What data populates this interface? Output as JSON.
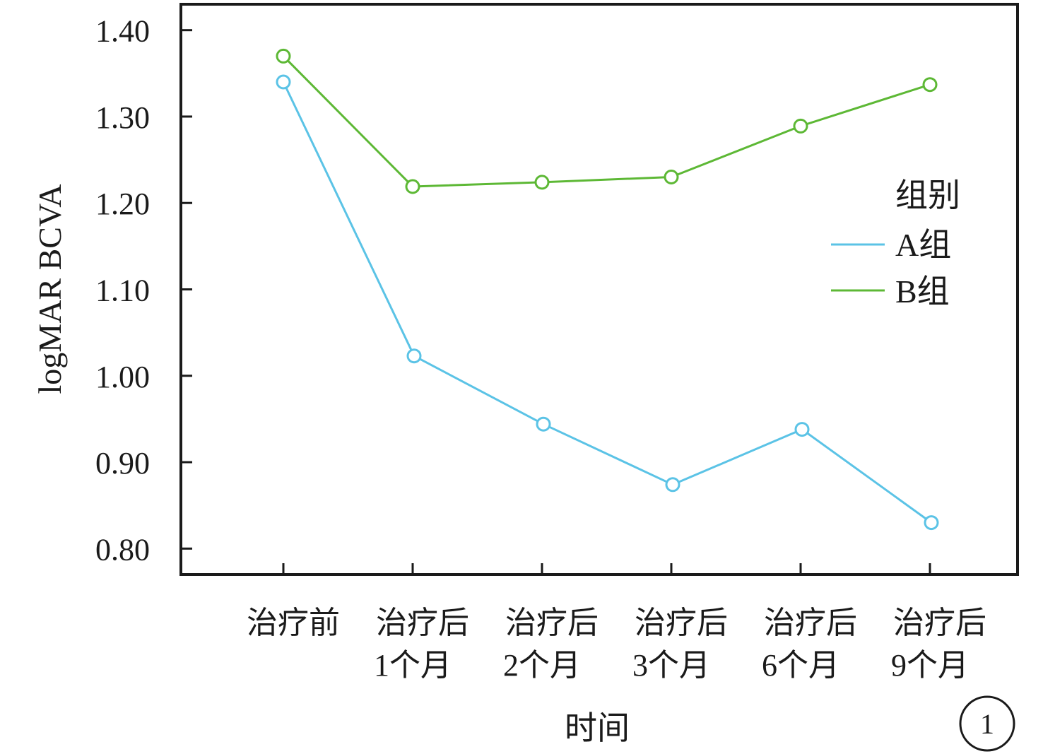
{
  "chart_data": {
    "type": "line",
    "xlabel": "时间",
    "ylabel": "logMAR BCVA",
    "ylim": [
      0.77,
      1.43
    ],
    "yticks": [
      0.8,
      0.9,
      1.0,
      1.1,
      1.2,
      1.3,
      1.4
    ],
    "ytick_labels": [
      "0.80",
      "0.90",
      "1.00",
      "1.10",
      "1.20",
      "1.30",
      "1.40"
    ],
    "categories": [
      [
        "治疗前"
      ],
      [
        "治疗后",
        "1个月"
      ],
      [
        "治疗后",
        "2个月"
      ],
      [
        "治疗后",
        "3个月"
      ],
      [
        "治疗后",
        "6个月"
      ],
      [
        "治疗后",
        "9个月"
      ]
    ],
    "series": [
      {
        "name": "A组",
        "color": "#5bc3e6",
        "values": [
          1.34,
          1.023,
          0.944,
          0.874,
          0.938,
          0.83
        ]
      },
      {
        "name": "B组",
        "color": "#5db835",
        "values": [
          1.37,
          1.219,
          1.224,
          1.23,
          1.289,
          1.337
        ]
      }
    ],
    "legend": {
      "title": "组别",
      "position": "right"
    },
    "grid": false,
    "marker": "open-circle"
  },
  "panel_label": "1"
}
